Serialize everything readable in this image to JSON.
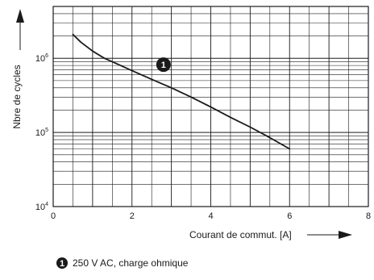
{
  "chart_data": {
    "type": "line",
    "xlabel": "Courant de commut. [A]",
    "ylabel": "Nbre de cycles",
    "x_ticks": [
      "0",
      "2",
      "4",
      "6",
      "8"
    ],
    "y_ticks": [
      {
        "base": "10",
        "exp": "4",
        "value": 10000
      },
      {
        "base": "10",
        "exp": "5",
        "value": 100000
      },
      {
        "base": "10",
        "exp": "6",
        "value": 1000000
      }
    ],
    "xlim": [
      0,
      8
    ],
    "ylim": [
      10000,
      5000000
    ],
    "y_scale": "log",
    "grid": true,
    "series": [
      {
        "marker": "1",
        "color": "#1a1a1a",
        "x": [
          0.5,
          0.7,
          1.0,
          1.3,
          1.6,
          2.0,
          2.5,
          3.0,
          3.5,
          4.0,
          4.5,
          5.0,
          5.5,
          6.0
        ],
        "y": [
          2100000,
          1650000,
          1250000,
          1000000,
          850000,
          680000,
          520000,
          400000,
          300000,
          220000,
          160000,
          118000,
          85000,
          60000
        ]
      }
    ],
    "annotations": [
      {
        "marker": "1",
        "x": 2.8,
        "y": 820000
      }
    ],
    "legend": [
      {
        "marker": "1",
        "text": "250 V AC, charge ohmique"
      }
    ],
    "legend_placement": "bottom-left"
  }
}
